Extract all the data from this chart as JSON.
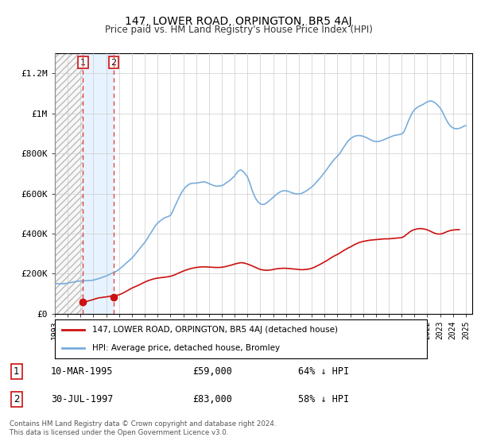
{
  "title": "147, LOWER ROAD, ORPINGTON, BR5 4AJ",
  "subtitle": "Price paid vs. HM Land Registry's House Price Index (HPI)",
  "ylim": [
    0,
    1300000
  ],
  "yticks": [
    0,
    200000,
    400000,
    600000,
    800000,
    1000000,
    1200000
  ],
  "ytick_labels": [
    "£0",
    "£200K",
    "£400K",
    "£600K",
    "£800K",
    "£1M",
    "£1.2M"
  ],
  "background_color": "#ffffff",
  "legend_label_red": "147, LOWER ROAD, ORPINGTON, BR5 4AJ (detached house)",
  "legend_label_blue": "HPI: Average price, detached house, Bromley",
  "transaction1_date": "10-MAR-1995",
  "transaction1_price": 59000,
  "transaction1_pct": "64% ↓ HPI",
  "transaction2_date": "30-JUL-1997",
  "transaction2_price": 83000,
  "transaction2_pct": "58% ↓ HPI",
  "footer": "Contains HM Land Registry data © Crown copyright and database right 2024.\nThis data is licensed under the Open Government Licence v3.0.",
  "hpi_years": [
    1993.0,
    1993.08,
    1993.17,
    1993.25,
    1993.33,
    1993.42,
    1993.5,
    1993.58,
    1993.67,
    1993.75,
    1993.83,
    1993.92,
    1994.0,
    1994.08,
    1994.17,
    1994.25,
    1994.33,
    1994.42,
    1994.5,
    1994.58,
    1994.67,
    1994.75,
    1994.83,
    1994.92,
    1995.0,
    1995.08,
    1995.17,
    1995.25,
    1995.33,
    1995.42,
    1995.5,
    1995.58,
    1995.67,
    1995.75,
    1995.83,
    1995.92,
    1996.0,
    1996.08,
    1996.17,
    1996.25,
    1996.33,
    1996.42,
    1996.5,
    1996.58,
    1996.67,
    1996.75,
    1996.83,
    1996.92,
    1997.0,
    1997.08,
    1997.17,
    1997.25,
    1997.33,
    1997.42,
    1997.5,
    1997.58,
    1997.67,
    1997.75,
    1997.83,
    1997.92,
    1998.0,
    1998.08,
    1998.17,
    1998.25,
    1998.33,
    1998.42,
    1998.5,
    1998.58,
    1998.67,
    1998.75,
    1998.83,
    1998.92,
    1999.0,
    1999.17,
    1999.33,
    1999.5,
    1999.67,
    1999.83,
    2000.0,
    2000.17,
    2000.33,
    2000.5,
    2000.67,
    2000.83,
    2001.0,
    2001.17,
    2001.33,
    2001.5,
    2001.67,
    2001.83,
    2002.0,
    2002.17,
    2002.33,
    2002.5,
    2002.67,
    2002.83,
    2003.0,
    2003.17,
    2003.33,
    2003.5,
    2003.67,
    2003.83,
    2004.0,
    2004.17,
    2004.33,
    2004.5,
    2004.67,
    2004.83,
    2005.0,
    2005.17,
    2005.33,
    2005.5,
    2005.67,
    2005.83,
    2006.0,
    2006.17,
    2006.33,
    2006.5,
    2006.67,
    2006.83,
    2007.0,
    2007.17,
    2007.33,
    2007.5,
    2007.67,
    2007.83,
    2008.0,
    2008.17,
    2008.33,
    2008.5,
    2008.67,
    2008.83,
    2009.0,
    2009.17,
    2009.33,
    2009.5,
    2009.67,
    2009.83,
    2010.0,
    2010.17,
    2010.33,
    2010.5,
    2010.67,
    2010.83,
    2011.0,
    2011.17,
    2011.33,
    2011.5,
    2011.67,
    2011.83,
    2012.0,
    2012.17,
    2012.33,
    2012.5,
    2012.67,
    2012.83,
    2013.0,
    2013.17,
    2013.33,
    2013.5,
    2013.67,
    2013.83,
    2014.0,
    2014.17,
    2014.33,
    2014.5,
    2014.67,
    2014.83,
    2015.0,
    2015.17,
    2015.33,
    2015.5,
    2015.67,
    2015.83,
    2016.0,
    2016.17,
    2016.33,
    2016.5,
    2016.67,
    2016.83,
    2017.0,
    2017.17,
    2017.33,
    2017.5,
    2017.67,
    2017.83,
    2018.0,
    2018.17,
    2018.33,
    2018.5,
    2018.67,
    2018.83,
    2019.0,
    2019.17,
    2019.33,
    2019.5,
    2019.67,
    2019.83,
    2020.0,
    2020.17,
    2020.33,
    2020.5,
    2020.67,
    2020.83,
    2021.0,
    2021.17,
    2021.33,
    2021.5,
    2021.67,
    2021.83,
    2022.0,
    2022.17,
    2022.33,
    2022.5,
    2022.67,
    2022.83,
    2023.0,
    2023.17,
    2023.33,
    2023.5,
    2023.67,
    2023.83,
    2024.0,
    2024.17,
    2024.33,
    2024.5,
    2024.67,
    2024.83,
    2025.0
  ],
  "hpi_values": [
    148000,
    149000,
    150000,
    150000,
    149000,
    150000,
    150000,
    149000,
    150000,
    150000,
    151000,
    152000,
    153000,
    154000,
    155000,
    156000,
    157000,
    158000,
    159000,
    160000,
    161000,
    162000,
    163000,
    163000,
    163000,
    164000,
    164000,
    164000,
    165000,
    165000,
    165000,
    165000,
    166000,
    166000,
    166000,
    167000,
    168000,
    169000,
    171000,
    172000,
    174000,
    176000,
    177000,
    179000,
    181000,
    183000,
    185000,
    187000,
    189000,
    191000,
    193000,
    196000,
    199000,
    201000,
    203000,
    205000,
    208000,
    211000,
    214000,
    218000,
    222000,
    226000,
    230000,
    234000,
    239000,
    244000,
    249000,
    254000,
    259000,
    264000,
    268000,
    273000,
    278000,
    290000,
    303000,
    317000,
    330000,
    343000,
    356000,
    372000,
    389000,
    406000,
    423000,
    440000,
    453000,
    462000,
    470000,
    477000,
    482000,
    486000,
    491000,
    510000,
    534000,
    558000,
    581000,
    601000,
    618000,
    632000,
    641000,
    648000,
    651000,
    652000,
    652000,
    654000,
    656000,
    658000,
    658000,
    655000,
    650000,
    645000,
    641000,
    638000,
    637000,
    638000,
    640000,
    645000,
    653000,
    660000,
    668000,
    678000,
    688000,
    704000,
    715000,
    718000,
    710000,
    698000,
    683000,
    655000,
    622000,
    594000,
    572000,
    558000,
    549000,
    545000,
    547000,
    554000,
    563000,
    572000,
    581000,
    591000,
    600000,
    607000,
    612000,
    614000,
    614000,
    611000,
    607000,
    603000,
    600000,
    598000,
    598000,
    600000,
    605000,
    610000,
    617000,
    625000,
    633000,
    643000,
    655000,
    667000,
    679000,
    692000,
    706000,
    720000,
    735000,
    750000,
    764000,
    776000,
    787000,
    799000,
    815000,
    832000,
    848000,
    862000,
    873000,
    881000,
    886000,
    889000,
    890000,
    889000,
    886000,
    882000,
    877000,
    872000,
    866000,
    862000,
    860000,
    860000,
    862000,
    866000,
    870000,
    875000,
    879000,
    884000,
    888000,
    891000,
    893000,
    895000,
    897000,
    907000,
    930000,
    958000,
    983000,
    1003000,
    1018000,
    1028000,
    1035000,
    1040000,
    1045000,
    1052000,
    1058000,
    1062000,
    1062000,
    1058000,
    1050000,
    1040000,
    1028000,
    1010000,
    988000,
    966000,
    948000,
    936000,
    928000,
    924000,
    924000,
    926000,
    930000,
    936000,
    940000
  ],
  "red_years": [
    1995.19,
    1995.33,
    1995.5,
    1995.67,
    1995.83,
    1996.0,
    1996.08,
    1996.17,
    1996.25,
    1996.33,
    1996.42,
    1996.5,
    1996.67,
    1996.75,
    1996.83,
    1996.92,
    1997.0,
    1997.08,
    1997.17,
    1997.25,
    1997.33,
    1997.42,
    1997.5,
    1997.58,
    1997.67,
    1997.75,
    1997.83,
    1997.92,
    1998.0,
    1998.17,
    1998.33,
    1998.5,
    1998.67,
    1998.83,
    1999.0,
    1999.25,
    1999.5,
    1999.75,
    2000.0,
    2000.25,
    2000.5,
    2000.75,
    2001.0,
    2001.25,
    2001.5,
    2001.75,
    2002.0,
    2002.25,
    2002.5,
    2002.75,
    2003.0,
    2003.25,
    2003.5,
    2003.75,
    2004.0,
    2004.25,
    2004.5,
    2004.75,
    2005.0,
    2005.25,
    2005.5,
    2005.75,
    2006.0,
    2006.25,
    2006.5,
    2006.75,
    2007.0,
    2007.25,
    2007.5,
    2007.75,
    2008.0,
    2008.25,
    2008.5,
    2008.75,
    2009.0,
    2009.25,
    2009.5,
    2009.75,
    2010.0,
    2010.25,
    2010.5,
    2010.75,
    2011.0,
    2011.17,
    2011.33,
    2011.5,
    2011.67,
    2011.83,
    2012.0,
    2012.17,
    2012.33,
    2012.5,
    2012.67,
    2012.83,
    2013.0,
    2013.17,
    2013.33,
    2013.5,
    2013.67,
    2013.83,
    2014.0,
    2014.17,
    2014.33,
    2014.5,
    2014.67,
    2014.83,
    2015.0,
    2015.17,
    2015.33,
    2015.5,
    2015.67,
    2015.83,
    2016.0,
    2016.17,
    2016.33,
    2016.5,
    2016.67,
    2016.83,
    2017.0,
    2017.17,
    2017.33,
    2017.5,
    2017.67,
    2017.83,
    2018.0,
    2018.17,
    2018.33,
    2018.5,
    2018.67,
    2018.83,
    2019.0,
    2019.17,
    2019.33,
    2019.5,
    2019.67,
    2019.83,
    2020.0,
    2020.17,
    2020.33,
    2020.5,
    2020.67,
    2020.83,
    2021.0,
    2021.17,
    2021.33,
    2021.5,
    2021.67,
    2021.83,
    2022.0,
    2022.17,
    2022.33,
    2022.5,
    2022.67,
    2022.83,
    2023.0,
    2023.17,
    2023.33,
    2023.5,
    2023.67,
    2023.83,
    2024.0,
    2024.17,
    2024.33,
    2024.5
  ],
  "red_values": [
    59000,
    60000,
    62000,
    65000,
    68000,
    71000,
    73000,
    75000,
    76000,
    78000,
    79000,
    80000,
    81000,
    82000,
    83000,
    83000,
    84000,
    85000,
    86000,
    87000,
    88000,
    88000,
    89000,
    83000,
    90000,
    91000,
    92000,
    93000,
    95000,
    99000,
    104000,
    110000,
    116000,
    122000,
    128000,
    135000,
    142000,
    150000,
    158000,
    165000,
    170000,
    175000,
    178000,
    180000,
    182000,
    184000,
    187000,
    192000,
    199000,
    206000,
    213000,
    219000,
    224000,
    228000,
    231000,
    233000,
    234000,
    234000,
    233000,
    232000,
    231000,
    231000,
    232000,
    235000,
    239000,
    243000,
    248000,
    252000,
    255000,
    253000,
    248000,
    242000,
    235000,
    228000,
    221000,
    218000,
    217000,
    218000,
    221000,
    224000,
    226000,
    227000,
    227000,
    226000,
    225000,
    224000,
    223000,
    222000,
    221000,
    220000,
    220000,
    221000,
    222000,
    224000,
    227000,
    231000,
    236000,
    241000,
    247000,
    253000,
    259000,
    265000,
    272000,
    279000,
    285000,
    291000,
    296000,
    302000,
    309000,
    316000,
    322000,
    328000,
    333000,
    339000,
    345000,
    350000,
    355000,
    358000,
    361000,
    363000,
    365000,
    367000,
    368000,
    369000,
    370000,
    371000,
    372000,
    373000,
    374000,
    374000,
    374000,
    375000,
    376000,
    377000,
    378000,
    379000,
    380000,
    385000,
    393000,
    402000,
    410000,
    416000,
    420000,
    423000,
    425000,
    425000,
    424000,
    422000,
    419000,
    414000,
    409000,
    404000,
    400000,
    398000,
    398000,
    400000,
    404000,
    409000,
    413000,
    416000,
    418000,
    419000,
    420000,
    420000
  ],
  "xtick_years": [
    1993,
    1994,
    1995,
    1996,
    1997,
    1998,
    1999,
    2000,
    2001,
    2002,
    2003,
    2004,
    2005,
    2006,
    2007,
    2008,
    2009,
    2010,
    2011,
    2012,
    2013,
    2014,
    2015,
    2016,
    2017,
    2018,
    2019,
    2020,
    2021,
    2022,
    2023,
    2024,
    2025
  ],
  "xlim": [
    1993.0,
    2025.5
  ],
  "hatch_x1": 1993.0,
  "hatch_x2": 1995.19,
  "blue_fill_x1": 1995.19,
  "blue_fill_x2": 1997.58,
  "transaction1_x": 1995.19,
  "transaction2_x": 1997.58
}
